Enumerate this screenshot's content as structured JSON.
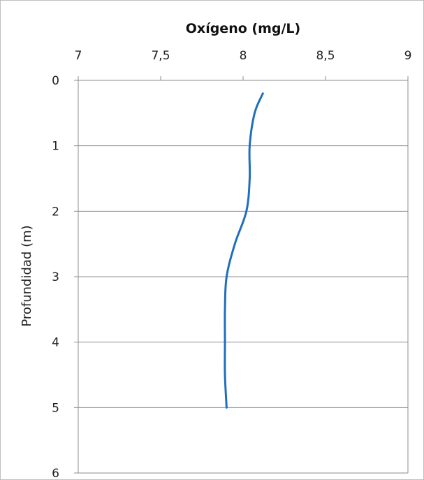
{
  "chart_data": {
    "type": "line",
    "title": "Oxígeno (mg/L)",
    "xlabel": "Oxígeno (mg/L)",
    "ylabel": "Profundidad (m)",
    "x_axis_position": "top",
    "y_axis_inverted": true,
    "xlim": [
      7,
      9
    ],
    "ylim": [
      0,
      6
    ],
    "x_ticks": [
      "7",
      "7,5",
      "8",
      "8,5",
      "9"
    ],
    "y_ticks": [
      "0",
      "1",
      "2",
      "3",
      "4",
      "5",
      "6"
    ],
    "grid": "horizontal",
    "series": [
      {
        "color": "#1f6fbf",
        "points": [
          {
            "x": 8.12,
            "y": 0.2
          },
          {
            "x": 8.07,
            "y": 0.5
          },
          {
            "x": 8.04,
            "y": 1.0
          },
          {
            "x": 8.04,
            "y": 1.5
          },
          {
            "x": 8.02,
            "y": 2.0
          },
          {
            "x": 7.95,
            "y": 2.5
          },
          {
            "x": 7.9,
            "y": 3.0
          },
          {
            "x": 7.89,
            "y": 3.5
          },
          {
            "x": 7.89,
            "y": 4.0
          },
          {
            "x": 7.89,
            "y": 4.5
          },
          {
            "x": 7.9,
            "y": 5.0
          }
        ]
      }
    ]
  }
}
